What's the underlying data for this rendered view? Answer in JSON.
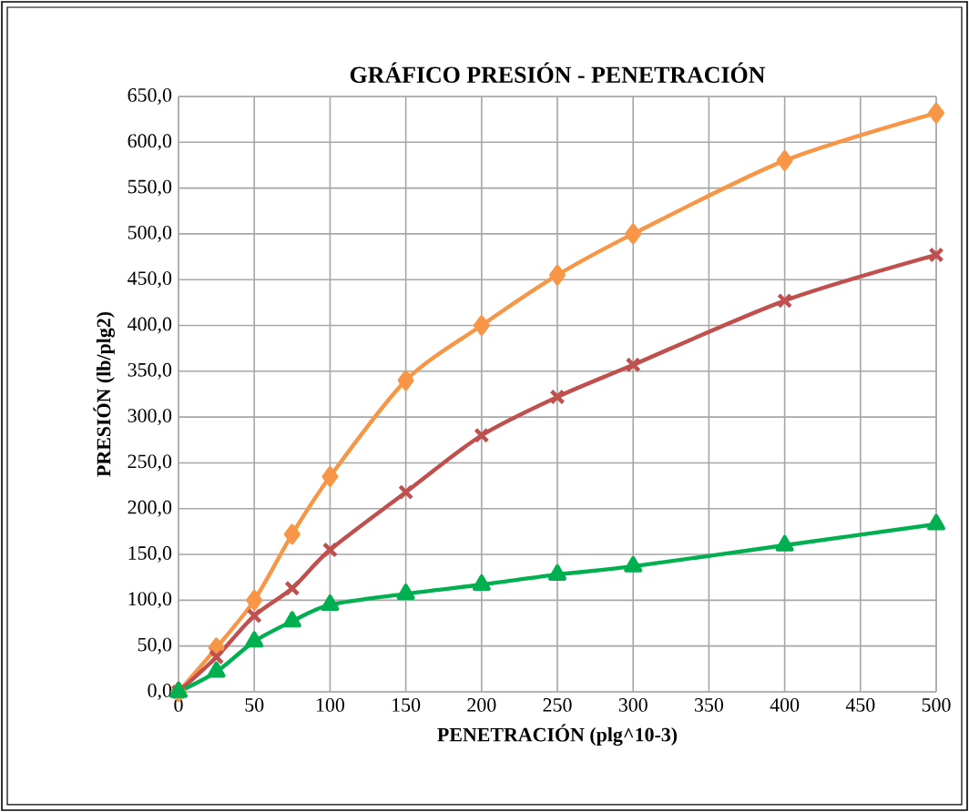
{
  "chart_data": {
    "type": "line",
    "title": "GRÁFICO PRESIÓN - PENETRACIÓN",
    "xlabel": "PENETRACIÓN (plg^10-3)",
    "ylabel": "PRESIÓN (lb/plg2)",
    "x": [
      0,
      25,
      50,
      75,
      100,
      150,
      200,
      250,
      300,
      400,
      500
    ],
    "series": [
      {
        "color": "#f79646",
        "marker": "diamond",
        "values": [
          0,
          48,
          100,
          172,
          235,
          340,
          400,
          455,
          500,
          580,
          632
        ]
      },
      {
        "color": "#c0504d",
        "marker": "cross",
        "values": [
          0,
          38,
          83,
          113,
          155,
          218,
          280,
          322,
          357,
          427,
          477
        ]
      },
      {
        "color": "#00b050",
        "marker": "triangle",
        "values": [
          0,
          22,
          55,
          77,
          95,
          107,
          117,
          128,
          137,
          160,
          183
        ]
      }
    ],
    "xlim": [
      0,
      500
    ],
    "xticks": [
      0,
      50,
      100,
      150,
      200,
      250,
      300,
      350,
      400,
      450,
      500
    ],
    "ylim": [
      0,
      650
    ],
    "yticks": [
      {
        "value": 0,
        "label": "0,0"
      },
      {
        "value": 50,
        "label": "50,0"
      },
      {
        "value": 100,
        "label": "100,0"
      },
      {
        "value": 150,
        "label": "150,0"
      },
      {
        "value": 200,
        "label": "200,0"
      },
      {
        "value": 250,
        "label": "250,0"
      },
      {
        "value": 300,
        "label": "300,0"
      },
      {
        "value": 350,
        "label": "350,0"
      },
      {
        "value": 400,
        "label": "400,0"
      },
      {
        "value": 450,
        "label": "450,0"
      },
      {
        "value": 500,
        "label": "500,0"
      },
      {
        "value": 550,
        "label": "550,0"
      },
      {
        "value": 600,
        "label": "600,0"
      },
      {
        "value": 650,
        "label": "650,0"
      }
    ],
    "grid": true,
    "line_style": "solid"
  }
}
